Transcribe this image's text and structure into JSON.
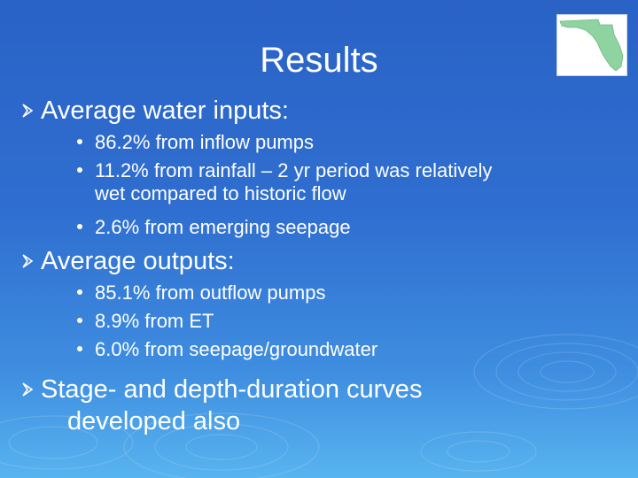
{
  "slide": {
    "title": "Results",
    "map_icon": "florida-map",
    "bullets": [
      {
        "text": "Average water inputs:",
        "sub": [
          "86.2% from inflow pumps",
          "11.2% from rainfall – 2 yr period was relatively",
          "wet compared to historic flow",
          "2.6% from emerging seepage"
        ]
      },
      {
        "text": "Average outputs:",
        "sub": [
          "85.1% from outflow pumps",
          "8.9% from ET",
          "6.0% from seepage/groundwater"
        ]
      },
      {
        "text": "Stage- and depth-duration curves",
        "text2": "developed also"
      }
    ]
  },
  "colors": {
    "background_top": "#2a62c6",
    "background_bottom": "#58b4ef",
    "text": "#ffffff",
    "map_fill": "#8fd3a0"
  }
}
